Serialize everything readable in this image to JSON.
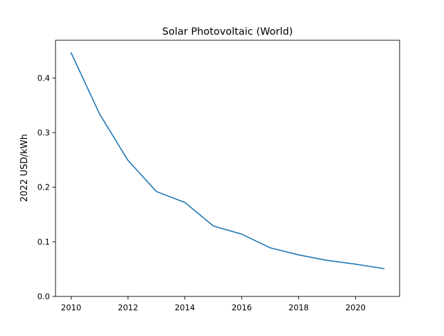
{
  "chart_data": {
    "type": "line",
    "title": "Solar Photovoltaic (World)",
    "xlabel": "",
    "ylabel": "2022 USD/kWh",
    "xlim": [
      2009.45,
      2021.55
    ],
    "ylim": [
      0.0,
      0.469
    ],
    "xticks": [
      2010,
      2012,
      2014,
      2016,
      2018,
      2020
    ],
    "yticks": [
      0.0,
      0.1,
      0.2,
      0.3,
      0.4
    ],
    "ytick_labels": [
      "0.0",
      "0.1",
      "0.2",
      "0.3",
      "0.4"
    ],
    "grid": false,
    "series": [
      {
        "color": "#1f77b4",
        "x": [
          2010,
          2011,
          2012,
          2013,
          2014,
          2015,
          2016,
          2017,
          2018,
          2019,
          2020,
          2021
        ],
        "values": [
          0.446,
          0.334,
          0.249,
          0.192,
          0.172,
          0.129,
          0.114,
          0.089,
          0.076,
          0.066,
          0.059,
          0.051
        ]
      }
    ]
  }
}
